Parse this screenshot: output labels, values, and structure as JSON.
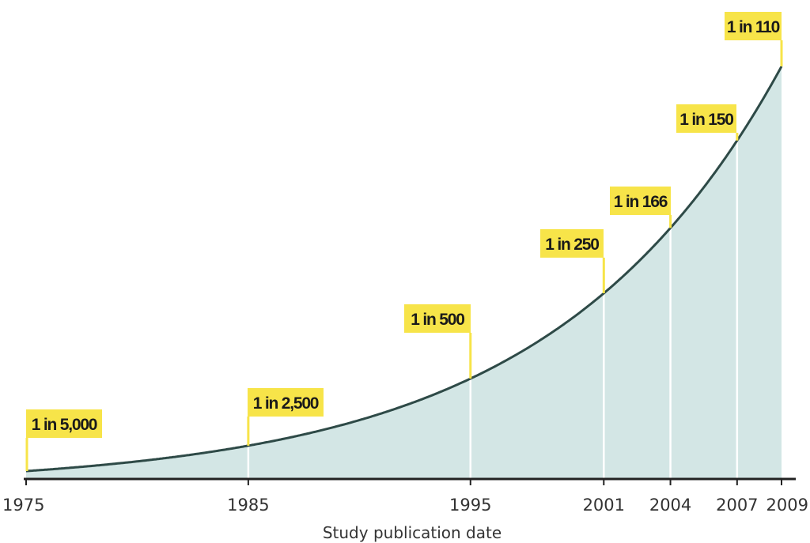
{
  "chart_data": {
    "type": "area",
    "title": "",
    "xlabel": "Study publication date",
    "ylabel": "",
    "x": [
      1975,
      1985,
      1995,
      2001,
      2004,
      2007,
      2009
    ],
    "tick_labels": [
      "1975",
      "1985",
      "1995",
      "2001",
      "2004",
      "2007",
      "2009"
    ],
    "series": [
      {
        "values": [
          0.0002,
          0.0004,
          0.002,
          0.004,
          0.006024,
          0.006667,
          0.009091
        ],
        "labels": [
          "1 in 5,000",
          "1 in 2,500",
          "1 in 500",
          "1 in 250",
          "1 in 166",
          "1 in 150",
          "1 in 110"
        ]
      }
    ],
    "xlim": [
      1975,
      2009
    ],
    "grid": false,
    "legend": "none",
    "colors": {
      "fill": "#d3e6e5",
      "line": "#2e4a47",
      "flag": "#f7e449",
      "axis": "#222222"
    }
  }
}
